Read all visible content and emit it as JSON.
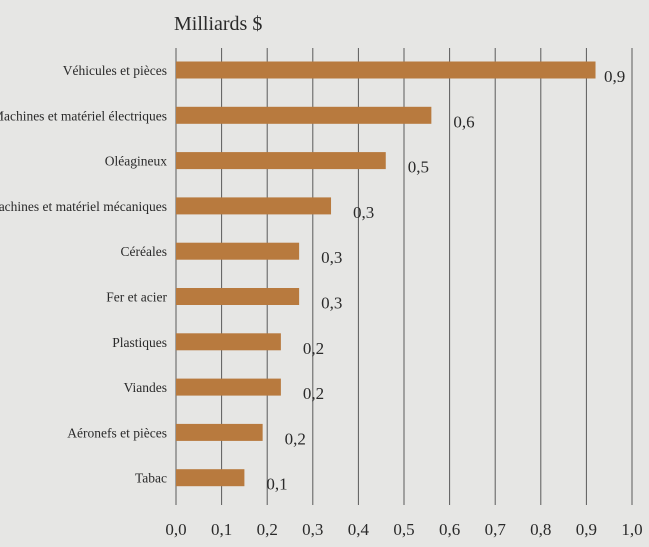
{
  "chart_data": {
    "type": "bar",
    "orientation": "horizontal",
    "unit_label": "Milliards $",
    "categories": [
      "Véhicules et pièces",
      "Machines et matériel électriques",
      "Oléagineux",
      "Machines et matériel mécaniques",
      "Céréales",
      "Fer et acier",
      "Plastiques",
      "Viandes",
      "Aéronefs et pièces",
      "Tabac"
    ],
    "values": [
      0.92,
      0.56,
      0.46,
      0.34,
      0.27,
      0.27,
      0.23,
      0.23,
      0.19,
      0.15
    ],
    "value_labels": [
      "0,9",
      "0,6",
      "0,5",
      "0,3",
      "0,3",
      "0,3",
      "0,2",
      "0,2",
      "0,2",
      "0,1"
    ],
    "xlim": [
      0,
      1
    ],
    "x_ticks": [
      0,
      0.1,
      0.2,
      0.3,
      0.4,
      0.5,
      0.6,
      0.7,
      0.8,
      0.9,
      1.0
    ],
    "x_tick_labels": [
      "0,0",
      "0,1",
      "0,2",
      "0,3",
      "0,4",
      "0,5",
      "0,6",
      "0,7",
      "0,8",
      "0,9",
      "1,0"
    ],
    "grid": "vertical",
    "colors": {
      "bar": "#b87a3e",
      "background": "#e6e6e4",
      "grid": "#5a5a5a"
    }
  }
}
